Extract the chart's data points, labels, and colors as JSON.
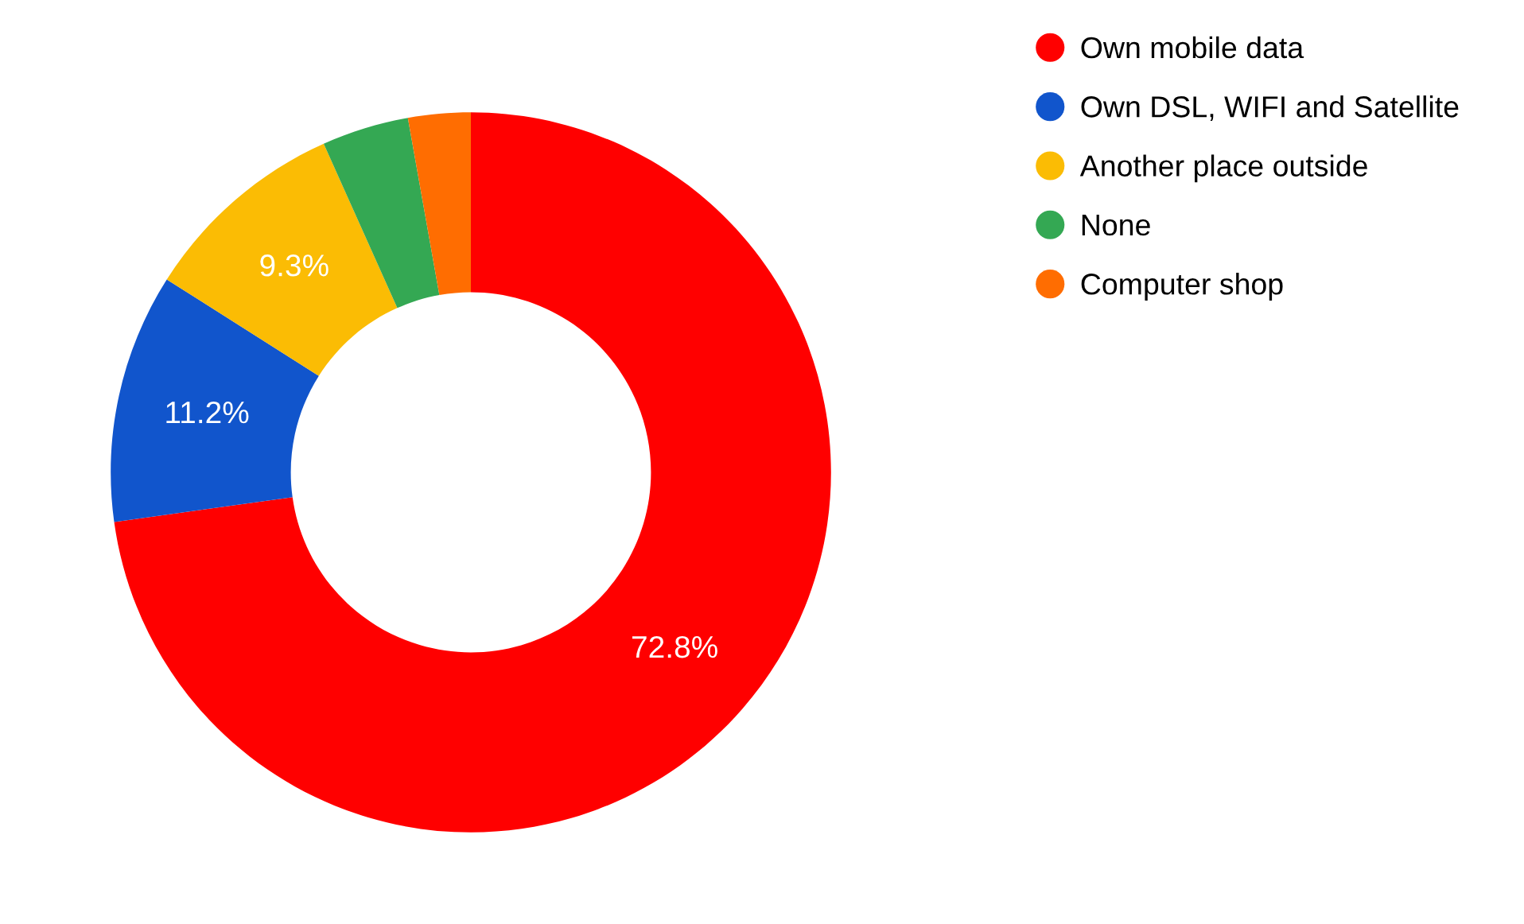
{
  "chart_data": {
    "type": "donut",
    "categories": [
      "Own mobile data",
      "Own DSL, WIFI and Satellite",
      "Another place outside",
      "None",
      "Computer shop"
    ],
    "values": [
      72.8,
      11.2,
      9.3,
      3.9,
      2.8
    ],
    "colors": [
      "#ff0000",
      "#1155cc",
      "#fbbc04",
      "#34a853",
      "#ff6d01"
    ],
    "value_labels": [
      "72.8%",
      "11.2%",
      "9.3%",
      null,
      null
    ],
    "legend": "top right"
  }
}
